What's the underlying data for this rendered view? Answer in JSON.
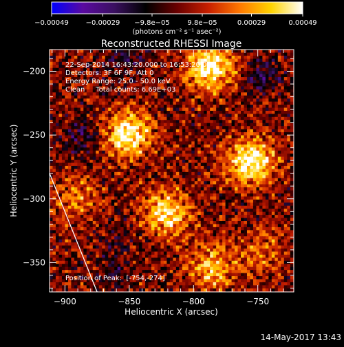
{
  "chart_data": {
    "type": "heatmap",
    "title": "Reconstructed RHESSI Image",
    "xlabel": "Heliocentric X (arcsec)",
    "ylabel": "Heliocentric Y (arcsec)",
    "xlim": [
      -912,
      -722
    ],
    "ylim": [
      -373,
      -183
    ],
    "x_ticks": [
      -900,
      -850,
      -800,
      -750
    ],
    "x_tick_labels": [
      "−900",
      "−850",
      "−800",
      "−750"
    ],
    "y_ticks": [
      -350,
      -300,
      -250,
      -200
    ],
    "y_tick_labels": [
      "−350",
      "−300",
      "−250",
      "−200"
    ],
    "colorbar": {
      "ticks": [
        -0.00049,
        -0.00029,
        -9.8e-05,
        9.8e-05,
        0.00029,
        0.00049
      ],
      "tick_labels": [
        "−0.00049",
        "−0.00029",
        "−9.8e−05",
        "9.8e−05",
        "0.00029",
        "0.00049"
      ],
      "units_label": "(photons cm⁻² s⁻¹ asec⁻²)",
      "colors": [
        "#0000ff",
        "#5a0aa0",
        "#3a1060",
        "#000000",
        "#6a0000",
        "#c82000",
        "#ff7800",
        "#ffd400",
        "#ffffff"
      ]
    },
    "grid": false,
    "sources": [
      {
        "x": -788,
        "y": -196,
        "value": 0.00049
      },
      {
        "x": -852,
        "y": -248,
        "value": 0.00045
      },
      {
        "x": -756,
        "y": -270,
        "value": 0.00049
      },
      {
        "x": -822,
        "y": -310,
        "value": 0.0004
      },
      {
        "x": -787,
        "y": -352,
        "value": 0.00032
      },
      {
        "x": -892,
        "y": -300,
        "value": 0.0002
      },
      {
        "x": -748,
        "y": -340,
        "value": 0.00018
      }
    ],
    "negative_sources": [
      {
        "x": -888,
        "y": -250,
        "value": -0.0002
      },
      {
        "x": -748,
        "y": -203,
        "value": -0.00018
      },
      {
        "x": -855,
        "y": -188,
        "value": -0.00016
      },
      {
        "x": -862,
        "y": -358,
        "value": -0.0001
      },
      {
        "x": -860,
        "y": -330,
        "value": -8e-05
      }
    ],
    "annotations": {
      "time_range": "22-Sep-2014 16:43:20.000 to 16:53:20.000",
      "detectors": "Detectors: 3F 6F 9F, Att 0",
      "energy": "Energy Range: 25.0 - 50.0 keV",
      "method": "Clean     Total counts: 6.69E+03",
      "peak": "Position of Peak:  [-754,-274]"
    },
    "limb_line": {
      "x": [
        -912,
        -875
      ],
      "y": [
        -280,
        -373
      ]
    }
  },
  "footer": {
    "date": "14-May-2017 13:43"
  }
}
